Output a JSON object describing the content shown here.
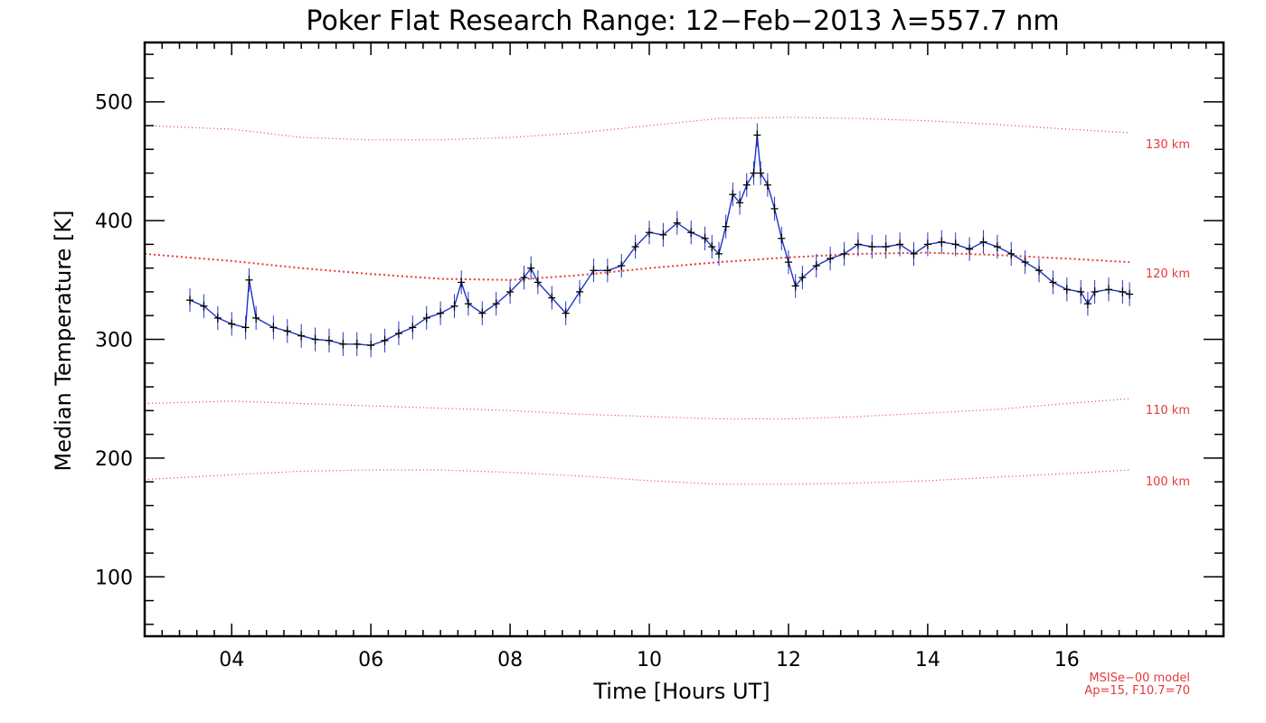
{
  "chart_data": {
    "type": "line",
    "title": "Poker Flat Research Range: 12−Feb−2013 λ=557.7 nm",
    "xlabel": "Time [Hours UT]",
    "ylabel": "Median Temperature [K]",
    "xlim": [
      2.75,
      18.25
    ],
    "ylim": [
      50,
      550
    ],
    "x_ticks": [
      4,
      6,
      8,
      10,
      12,
      14,
      16
    ],
    "x_tick_labels": [
      "04",
      "06",
      "08",
      "10",
      "12",
      "14",
      "16"
    ],
    "y_ticks": [
      100,
      200,
      300,
      400,
      500
    ],
    "y_tick_labels": [
      "100",
      "200",
      "300",
      "400",
      "500"
    ],
    "grid": false,
    "colors": {
      "data_line": "#1f33c8",
      "error_bars": "#2a36c9",
      "markers": "#000000",
      "model": "#e33b3b"
    },
    "series": [
      {
        "type": "line_with_errorbars",
        "error": 10,
        "x": [
          3.4,
          3.6,
          3.8,
          4.0,
          4.2,
          4.25,
          4.35,
          4.6,
          4.8,
          5.0,
          5.2,
          5.4,
          5.6,
          5.8,
          6.0,
          6.2,
          6.4,
          6.6,
          6.8,
          7.0,
          7.2,
          7.3,
          7.4,
          7.6,
          7.8,
          8.0,
          8.2,
          8.3,
          8.4,
          8.6,
          8.8,
          9.0,
          9.2,
          9.4,
          9.6,
          9.8,
          10.0,
          10.2,
          10.4,
          10.6,
          10.8,
          10.9,
          11.0,
          11.1,
          11.2,
          11.3,
          11.4,
          11.5,
          11.55,
          11.6,
          11.7,
          11.8,
          11.9,
          12.0,
          12.1,
          12.2,
          12.4,
          12.6,
          12.8,
          13.0,
          13.2,
          13.4,
          13.6,
          13.8,
          14.0,
          14.2,
          14.4,
          14.6,
          14.8,
          15.0,
          15.2,
          15.4,
          15.6,
          15.8,
          16.0,
          16.2,
          16.3,
          16.4,
          16.6,
          16.8,
          16.9
        ],
        "y": [
          333,
          328,
          318,
          313,
          310,
          350,
          318,
          310,
          307,
          303,
          300,
          299,
          296,
          296,
          295,
          299,
          305,
          310,
          318,
          322,
          328,
          348,
          330,
          322,
          330,
          340,
          352,
          360,
          348,
          335,
          322,
          340,
          358,
          358,
          362,
          378,
          390,
          388,
          398,
          390,
          385,
          378,
          372,
          395,
          422,
          415,
          430,
          440,
          472,
          440,
          430,
          410,
          385,
          365,
          345,
          352,
          362,
          368,
          372,
          380,
          378,
          378,
          380,
          372,
          380,
          382,
          380,
          376,
          382,
          378,
          372,
          365,
          358,
          348,
          342,
          340,
          330,
          340,
          342,
          340,
          338
        ]
      }
    ],
    "model_curves": [
      {
        "label": "130 km",
        "x": [
          2.75,
          4,
          5,
          6,
          7,
          8,
          9,
          10,
          11,
          12,
          13,
          14,
          15,
          16,
          16.9
        ],
        "y": [
          480,
          477,
          470,
          468,
          468,
          470,
          474,
          480,
          486,
          487,
          486,
          484,
          481,
          477,
          474
        ]
      },
      {
        "label": "120 km",
        "x": [
          2.75,
          4,
          5,
          6,
          7,
          8,
          9,
          10,
          11,
          12,
          13,
          14,
          15,
          16,
          16.9
        ],
        "y": [
          372,
          366,
          360,
          355,
          351,
          350,
          354,
          360,
          365,
          369,
          372,
          373,
          371,
          368,
          365
        ]
      },
      {
        "label": "110 km",
        "x": [
          2.75,
          4,
          5,
          6,
          7,
          8,
          9,
          10,
          11,
          12,
          13,
          14,
          15,
          16,
          16.9
        ],
        "y": [
          246,
          248,
          246,
          244,
          242,
          240,
          237,
          235,
          233,
          233,
          235,
          238,
          241,
          246,
          250
        ]
      },
      {
        "label": "100 km",
        "x": [
          2.75,
          4,
          5,
          6,
          7,
          8,
          9,
          10,
          11,
          12,
          13,
          14,
          15,
          16,
          16.9
        ],
        "y": [
          182,
          186,
          189,
          190,
          190,
          188,
          185,
          181,
          178,
          178,
          179,
          181,
          184,
          187,
          190
        ]
      }
    ],
    "footnote": [
      "MSISe−00 model",
      "Ap=15, F10.7=70"
    ]
  }
}
